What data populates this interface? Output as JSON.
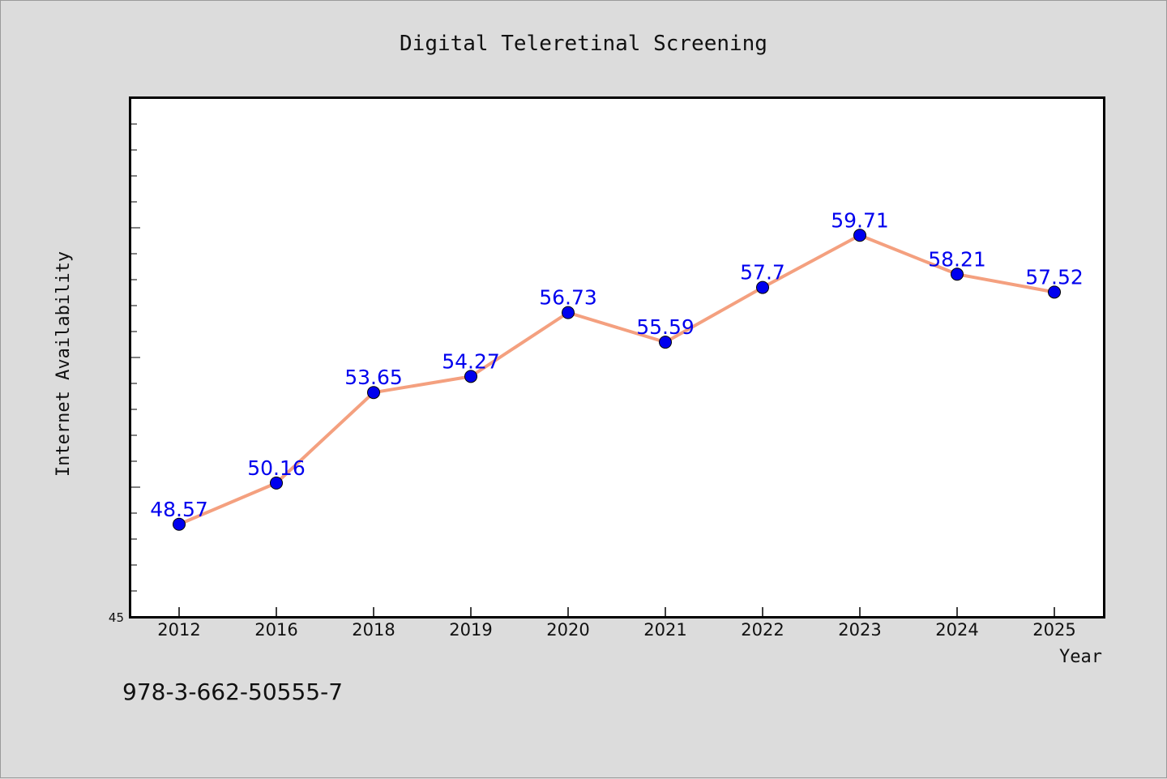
{
  "chart_data": {
    "type": "line",
    "title": "Digital Teleretinal Screening",
    "xlabel": "Year",
    "ylabel": "Internet Availability",
    "categories": [
      "2012",
      "2016",
      "2018",
      "2019",
      "2020",
      "2021",
      "2022",
      "2023",
      "2024",
      "2025"
    ],
    "values": [
      48.57,
      50.16,
      53.65,
      54.27,
      56.73,
      55.59,
      57.7,
      59.71,
      58.21,
      57.52
    ],
    "value_labels": [
      "48.57",
      "50.16",
      "53.65",
      "54.27",
      "56.73",
      "55.59",
      "57.7",
      "59.71",
      "58.21",
      "57.52"
    ],
    "ylim": [
      45,
      65
    ],
    "ytick_shown": "45",
    "grid": false,
    "legend": "none",
    "line_color": "#f4a07f",
    "marker_color": "#0000ee",
    "label_color": "#0000ee",
    "plot_background": "#ffffff",
    "figure_background": "#dcdcdc"
  },
  "footer": {
    "isbn": "978-3-662-50555-7"
  }
}
